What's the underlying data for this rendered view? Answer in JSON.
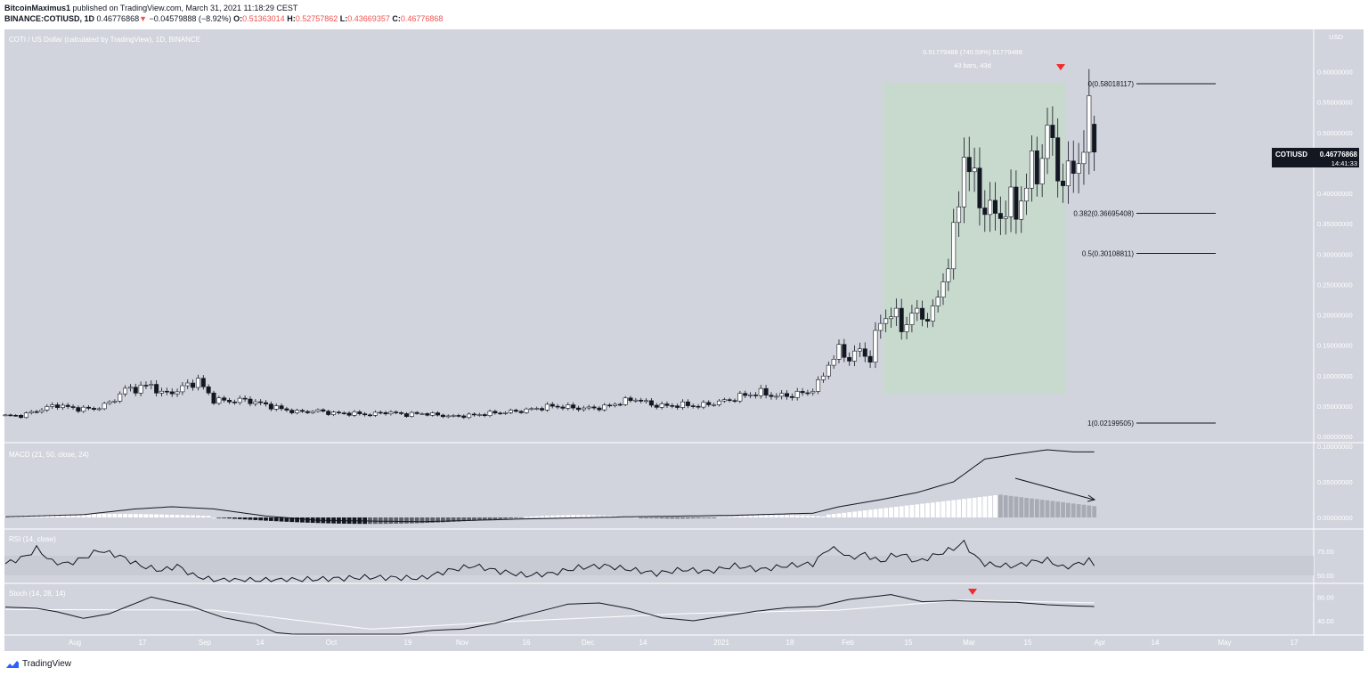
{
  "header": {
    "author": "BitcoinMaximus1",
    "published": "published on TradingView.com, March 31, 2021 11:18:29 CEST",
    "symbol": "BINANCE:COTIUSD, 1D",
    "last": "0.46776868",
    "change": "−0.04579888 (−8.92%)",
    "o_label": "O:",
    "o": "0.51363014",
    "h_label": "H:",
    "h": "0.52757862",
    "l_label": "L:",
    "l": "0.43669357",
    "c_label": "C:",
    "c": "0.46776868"
  },
  "panes": {
    "main_title": "COTI / US Dollar (calculated by TradingView), 1D, BINANCE",
    "macd_title": "MACD (21, 50, close, 24)",
    "rsi_title": "RSI (14, close)",
    "stoch_title": "Stoch (14, 28, 14)",
    "currency": "USD"
  },
  "price_tag": {
    "symbol": "COTIUSD",
    "value": "0.46776868",
    "countdown": "14:41:33"
  },
  "measure": {
    "line1": "0.51779488 (740.59%) 51779488",
    "line2": "43 bars, 43d"
  },
  "fib": [
    {
      "label": "0(0.58018117)",
      "value": 0.58018117
    },
    {
      "label": "0.382(0.36695408)",
      "value": 0.36695408
    },
    {
      "label": "0.5(0.30108811)",
      "value": 0.30108811
    },
    {
      "label": "1(0.02199505)",
      "value": 0.02199505
    }
  ],
  "colors": {
    "pane": "#d1d4dc",
    "rect": "#c8d9cd",
    "line": "#131722",
    "signal": "#ffffff",
    "marker": "#ef2b2b"
  },
  "footer": {
    "brand": "TradingView"
  },
  "chart_data": {
    "type": "candlestick",
    "x_ticks": [
      "Aug",
      "17",
      "Sep",
      "14",
      "Oct",
      "19",
      "Nov",
      "16",
      "Dec",
      "14",
      "2021",
      "18",
      "Feb",
      "15",
      "Mar",
      "15",
      "Apr",
      "14",
      "May",
      "17"
    ],
    "price_axis": [
      "0.60000000",
      "0.55000000",
      "0.50000000",
      "0.45000000",
      "0.40000000",
      "0.35000000",
      "0.30000000",
      "0.25000000",
      "0.20000000",
      "0.15000000",
      "0.10000000",
      "0.05000000",
      "0.00000000"
    ],
    "macd_axis": [
      "0.10000000",
      "0.05000000",
      "0.00000000"
    ],
    "rsi_axis": [
      "75.00",
      "50.00"
    ],
    "stoch_axis": [
      "80.00",
      "40.00"
    ],
    "ylim": [
      0,
      0.6
    ],
    "close_path": [
      [
        0,
        0.034
      ],
      [
        3,
        0.034
      ],
      [
        7,
        0.045
      ],
      [
        10,
        0.052
      ],
      [
        13,
        0.046
      ],
      [
        17,
        0.045
      ],
      [
        20,
        0.055
      ],
      [
        23,
        0.077
      ],
      [
        26,
        0.08
      ],
      [
        28,
        0.085
      ],
      [
        30,
        0.07
      ],
      [
        33,
        0.075
      ],
      [
        35,
        0.085
      ],
      [
        37,
        0.092
      ],
      [
        38,
        0.08
      ],
      [
        40,
        0.06
      ],
      [
        43,
        0.058
      ],
      [
        46,
        0.06
      ],
      [
        50,
        0.052
      ],
      [
        53,
        0.045
      ],
      [
        56,
        0.04
      ],
      [
        60,
        0.042
      ],
      [
        63,
        0.038
      ],
      [
        66,
        0.038
      ],
      [
        70,
        0.036
      ],
      [
        73,
        0.04
      ],
      [
        77,
        0.036
      ],
      [
        80,
        0.038
      ],
      [
        83,
        0.035
      ],
      [
        86,
        0.033
      ],
      [
        90,
        0.035
      ],
      [
        93,
        0.038
      ],
      [
        96,
        0.04
      ],
      [
        99,
        0.042
      ],
      [
        102,
        0.046
      ],
      [
        105,
        0.05
      ],
      [
        108,
        0.048
      ],
      [
        111,
        0.046
      ],
      [
        115,
        0.048
      ],
      [
        118,
        0.056
      ],
      [
        121,
        0.062
      ],
      [
        124,
        0.052
      ],
      [
        127,
        0.05
      ],
      [
        130,
        0.052
      ],
      [
        133,
        0.05
      ],
      [
        136,
        0.055
      ],
      [
        139,
        0.06
      ],
      [
        142,
        0.068
      ],
      [
        145,
        0.072
      ],
      [
        148,
        0.066
      ],
      [
        151,
        0.068
      ],
      [
        154,
        0.073
      ],
      [
        156,
        0.085
      ],
      [
        158,
        0.12
      ],
      [
        160,
        0.14
      ],
      [
        162,
        0.13
      ],
      [
        164,
        0.14
      ],
      [
        166,
        0.13
      ],
      [
        168,
        0.19
      ],
      [
        170,
        0.205
      ],
      [
        172,
        0.18
      ],
      [
        174,
        0.2
      ],
      [
        176,
        0.2
      ],
      [
        178,
        0.2
      ],
      [
        180,
        0.26
      ],
      [
        182,
        0.32
      ],
      [
        184,
        0.47
      ],
      [
        186,
        0.41
      ],
      [
        188,
        0.38
      ],
      [
        190,
        0.36
      ],
      [
        192,
        0.38
      ],
      [
        194,
        0.37
      ],
      [
        196,
        0.42
      ],
      [
        198,
        0.44
      ],
      [
        200,
        0.5
      ],
      [
        202,
        0.44
      ],
      [
        204,
        0.42
      ],
      [
        206,
        0.46
      ],
      [
        208,
        0.51
      ],
      [
        209,
        0.468
      ]
    ],
    "macd_path": [
      [
        0,
        0.001
      ],
      [
        15,
        0.004
      ],
      [
        25,
        0.012
      ],
      [
        32,
        0.015
      ],
      [
        40,
        0.012
      ],
      [
        50,
        0.002
      ],
      [
        60,
        -0.004
      ],
      [
        80,
        -0.006
      ],
      [
        100,
        -0.002
      ],
      [
        120,
        0.001
      ],
      [
        140,
        0.003
      ],
      [
        155,
        0.006
      ],
      [
        160,
        0.015
      ],
      [
        168,
        0.025
      ],
      [
        175,
        0.035
      ],
      [
        182,
        0.05
      ],
      [
        188,
        0.082
      ],
      [
        195,
        0.09
      ],
      [
        200,
        0.095
      ],
      [
        205,
        0.092
      ],
      [
        209,
        0.092
      ]
    ],
    "rsi_path": [
      [
        0,
        62
      ],
      [
        4,
        70
      ],
      [
        6,
        78
      ],
      [
        9,
        64
      ],
      [
        12,
        62
      ],
      [
        15,
        68
      ],
      [
        18,
        76
      ],
      [
        22,
        70
      ],
      [
        26,
        60
      ],
      [
        30,
        55
      ],
      [
        33,
        60
      ],
      [
        36,
        50
      ],
      [
        40,
        45
      ],
      [
        50,
        45
      ],
      [
        60,
        46
      ],
      [
        70,
        48
      ],
      [
        80,
        47
      ],
      [
        85,
        55
      ],
      [
        90,
        60
      ],
      [
        95,
        54
      ],
      [
        100,
        50
      ],
      [
        105,
        52
      ],
      [
        110,
        58
      ],
      [
        115,
        60
      ],
      [
        120,
        56
      ],
      [
        125,
        52
      ],
      [
        130,
        56
      ],
      [
        135,
        54
      ],
      [
        140,
        60
      ],
      [
        145,
        56
      ],
      [
        150,
        60
      ],
      [
        155,
        62
      ],
      [
        158,
        78
      ],
      [
        160,
        76
      ],
      [
        162,
        68
      ],
      [
        165,
        72
      ],
      [
        168,
        64
      ],
      [
        170,
        70
      ],
      [
        172,
        72
      ],
      [
        175,
        64
      ],
      [
        178,
        70
      ],
      [
        182,
        78
      ],
      [
        184,
        84
      ],
      [
        186,
        70
      ],
      [
        188,
        62
      ],
      [
        191,
        60
      ],
      [
        194,
        60
      ],
      [
        197,
        64
      ],
      [
        200,
        66
      ],
      [
        203,
        58
      ],
      [
        206,
        62
      ],
      [
        208,
        66
      ],
      [
        209,
        60
      ]
    ],
    "stoch_path": [
      [
        0,
        63
      ],
      [
        6,
        61
      ],
      [
        10,
        55
      ],
      [
        15,
        44
      ],
      [
        20,
        52
      ],
      [
        28,
        80
      ],
      [
        35,
        66
      ],
      [
        42,
        45
      ],
      [
        48,
        35
      ],
      [
        52,
        20
      ],
      [
        60,
        14
      ],
      [
        68,
        12
      ],
      [
        75,
        16
      ],
      [
        82,
        24
      ],
      [
        88,
        26
      ],
      [
        94,
        36
      ],
      [
        100,
        50
      ],
      [
        108,
        68
      ],
      [
        114,
        70
      ],
      [
        120,
        60
      ],
      [
        126,
        45
      ],
      [
        132,
        40
      ],
      [
        138,
        48
      ],
      [
        144,
        56
      ],
      [
        150,
        62
      ],
      [
        156,
        64
      ],
      [
        162,
        76
      ],
      [
        170,
        84
      ],
      [
        176,
        72
      ],
      [
        182,
        74
      ],
      [
        188,
        72
      ],
      [
        194,
        71
      ],
      [
        200,
        67
      ],
      [
        205,
        65
      ],
      [
        209,
        64
      ]
    ],
    "stoch_signal": [
      [
        0,
        59
      ],
      [
        40,
        58
      ],
      [
        70,
        26
      ],
      [
        100,
        40
      ],
      [
        130,
        52
      ],
      [
        160,
        58
      ],
      [
        184,
        75
      ],
      [
        209,
        70
      ]
    ]
  }
}
